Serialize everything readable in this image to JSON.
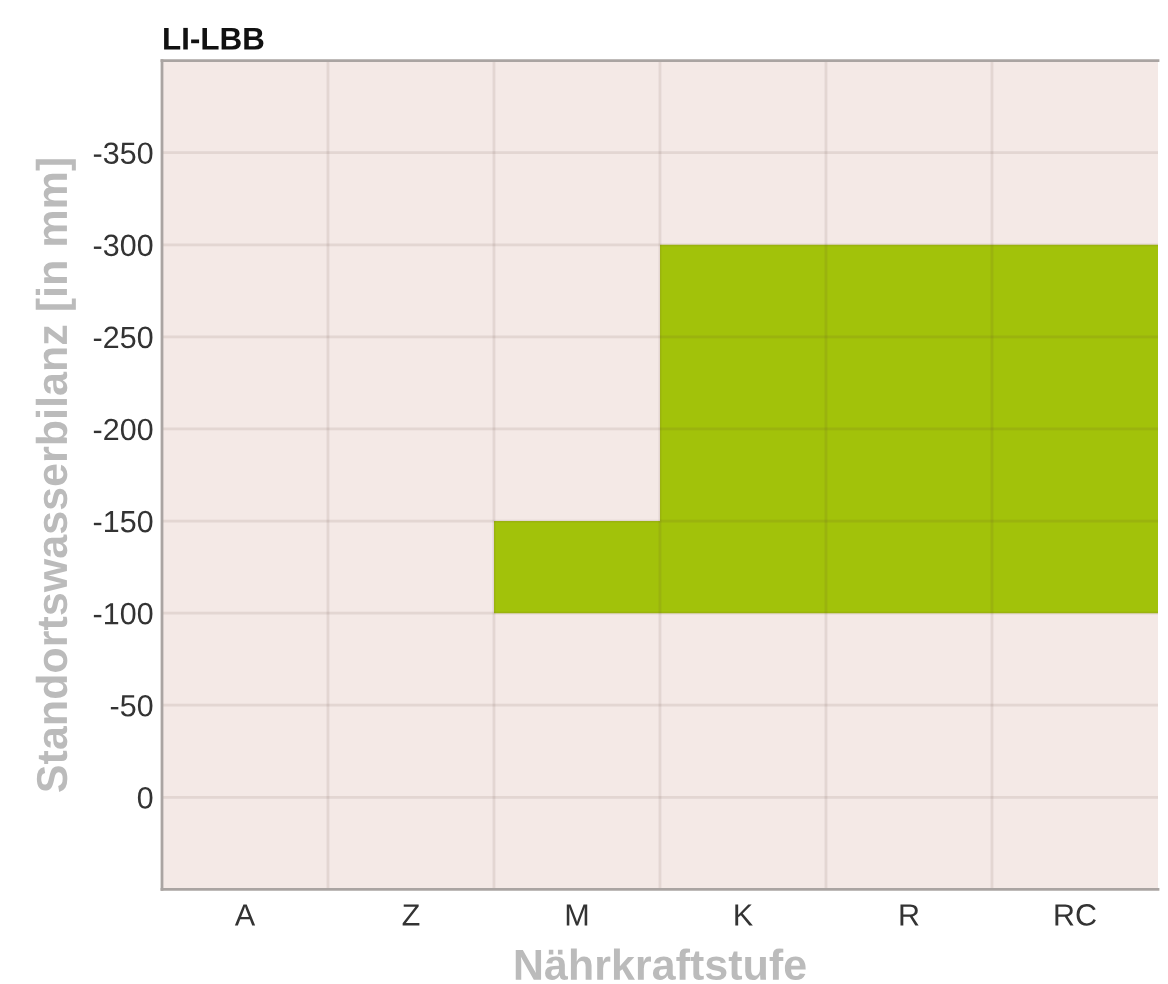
{
  "chart_data": {
    "type": "bar",
    "title": "LI-LBB",
    "xlabel": "Nährkraftstufe",
    "ylabel": "Standortswasserbilanz [in mm]",
    "categories": [
      "A",
      "Z",
      "M",
      "K",
      "R",
      "RC"
    ],
    "values": [
      null,
      null,
      -50,
      -200,
      -200,
      -200
    ],
    "base": [
      null,
      null,
      -100,
      -100,
      -100,
      -100
    ],
    "color": "#a2c20a",
    "ylim": [
      50,
      -400
    ],
    "yticks": [
      -350,
      -300,
      -250,
      -200,
      -150,
      -100,
      -50,
      0
    ],
    "grid": true
  }
}
